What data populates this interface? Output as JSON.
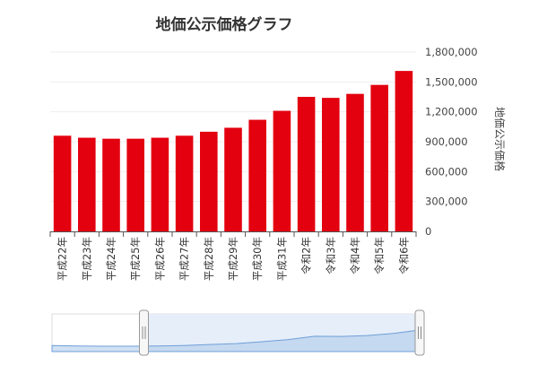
{
  "chart_data": {
    "type": "bar",
    "title": "地価公示価格グラフ",
    "ylabel": "地価公示価格",
    "xlabel": "",
    "categories": [
      "平成22年",
      "平成23年",
      "平成24年",
      "平成25年",
      "平成26年",
      "平成27年",
      "平成28年",
      "平成29年",
      "平成30年",
      "平成31年",
      "令和2年",
      "令和3年",
      "令和4年",
      "令和5年",
      "令和6年"
    ],
    "values": [
      960000,
      940000,
      930000,
      930000,
      940000,
      960000,
      1000000,
      1040000,
      1120000,
      1210000,
      1350000,
      1340000,
      1380000,
      1470000,
      1610000
    ],
    "yticks": [
      0,
      300000,
      600000,
      900000,
      1200000,
      1500000,
      1800000
    ],
    "ytick_labels": [
      "0",
      "300,000",
      "600,000",
      "900,000",
      "1,200,000",
      "1,500,000",
      "1,800,000"
    ],
    "ylim": [
      0,
      1800000
    ],
    "bar_color": "#e3000f",
    "grid": true,
    "navigator": {
      "range_start": 0.25,
      "range_end": 1.0,
      "series_color": "#a9c8ea"
    }
  }
}
